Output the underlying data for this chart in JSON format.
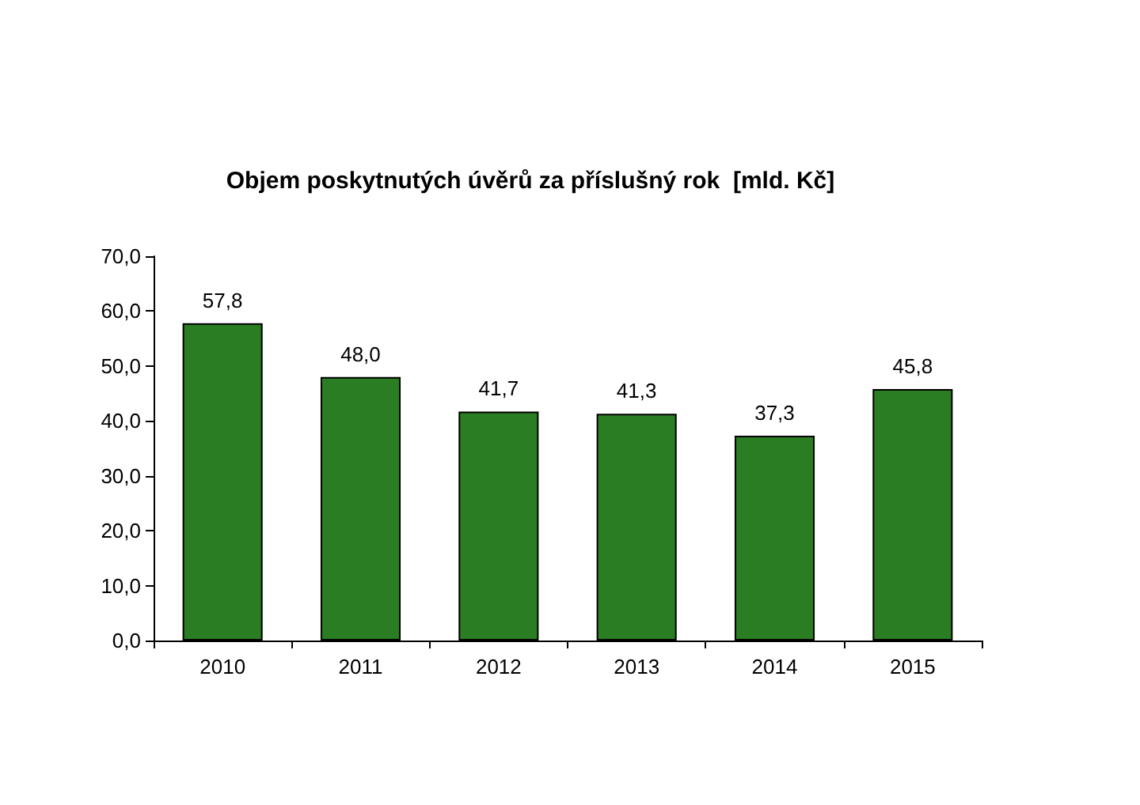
{
  "chart_data": {
    "type": "bar",
    "title": "Objem poskytnutých úvěrů za příslušný rok  [mld. Kč]",
    "categories": [
      "2010",
      "2011",
      "2012",
      "2013",
      "2014",
      "2015"
    ],
    "values": [
      57.8,
      48.0,
      41.7,
      41.3,
      37.3,
      45.8
    ],
    "value_labels": [
      "57,8",
      "48,0",
      "41,7",
      "41,3",
      "37,3",
      "45,8"
    ],
    "color": "#2a7d22",
    "ylim": [
      0,
      70
    ],
    "yticks": [
      {
        "value": 0,
        "label": "0,0"
      },
      {
        "value": 10,
        "label": "10,0"
      },
      {
        "value": 20,
        "label": "20,0"
      },
      {
        "value": 30,
        "label": "30,0"
      },
      {
        "value": 40,
        "label": "40,0"
      },
      {
        "value": 50,
        "label": "50,0"
      },
      {
        "value": 60,
        "label": "60,0"
      },
      {
        "value": 70,
        "label": "70,0"
      }
    ],
    "grid": false
  }
}
